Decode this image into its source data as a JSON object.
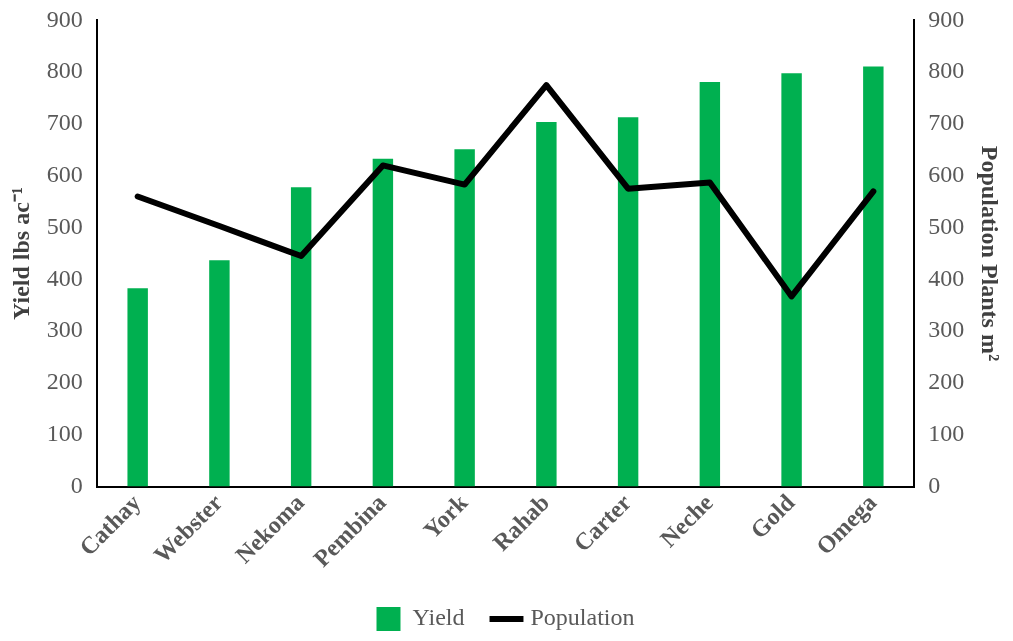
{
  "chart_data": {
    "type": "bar",
    "categories": [
      "Cathay",
      "Webster",
      "Nekoma",
      "Pembina",
      "York",
      "Rahab",
      "Carter",
      "Neche",
      "Gold",
      "Omega"
    ],
    "series": [
      {
        "name": "Yield",
        "color": "#00b050",
        "values": [
          383,
          437,
          578,
          633,
          651,
          704,
          713,
          781,
          798,
          811
        ]
      },
      {
        "name": "Population",
        "type": "line",
        "axis": "y2",
        "color": "#000000",
        "values": [
          560,
          503,
          445,
          620,
          583,
          775,
          575,
          587,
          367,
          570
        ]
      }
    ],
    "ylabel": "Yield lbs ac⁻¹",
    "y2label": "Population Plants m²",
    "ylim": [
      0,
      900
    ],
    "yticks": [
      0,
      100,
      200,
      300,
      400,
      500,
      600,
      700,
      800,
      900
    ],
    "y2lim": [
      0,
      900
    ],
    "y2ticks": [
      0,
      100,
      200,
      300,
      400,
      500,
      600,
      700,
      800,
      900
    ],
    "grid": false,
    "legend": "bottom",
    "marker": "none"
  }
}
